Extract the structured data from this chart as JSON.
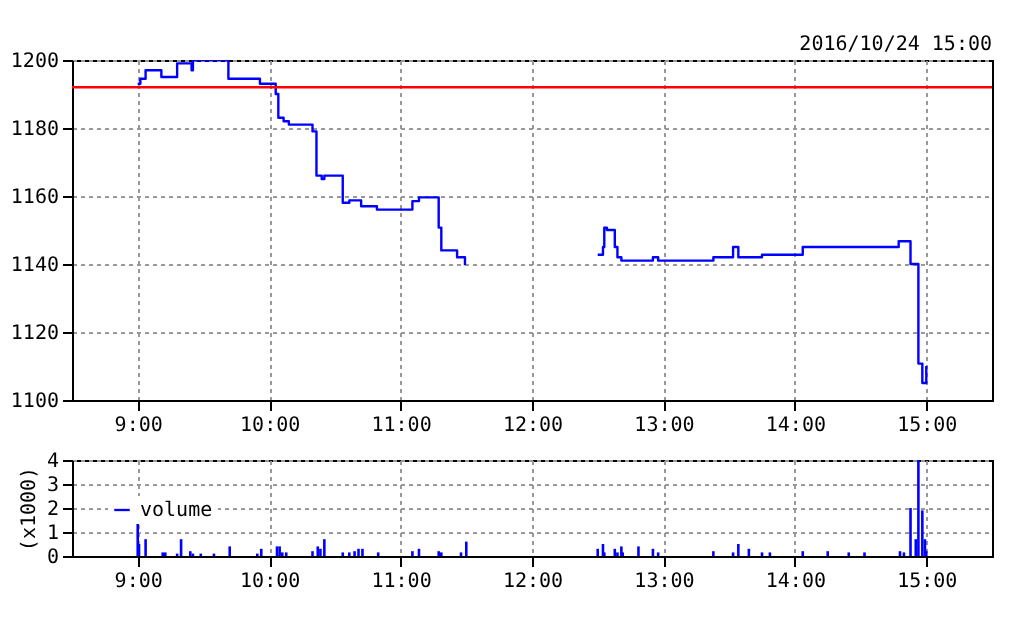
{
  "chart_data": [
    {
      "type": "step",
      "color": "#0000ff",
      "annotations": [
        "2016/10/24 15:00"
      ],
      "x": [
        9.0,
        9.02,
        9.06,
        9.18,
        9.3,
        9.41,
        9.42,
        9.69,
        9.93,
        10.05,
        10.07,
        10.11,
        10.15,
        10.33,
        10.36,
        10.4,
        10.42,
        10.56,
        10.61,
        10.7,
        10.82,
        11.09,
        11.14,
        11.29,
        11.31,
        11.43,
        11.49,
        12.0,
        12.5,
        12.54,
        12.55,
        12.57,
        12.63,
        12.65,
        12.68,
        12.92,
        12.96,
        13.38,
        13.53,
        13.57,
        13.75,
        14.06,
        14.79,
        14.88,
        14.94,
        14.97,
        15.0
      ],
      "values": [
        1193,
        1194.5,
        1197,
        1195,
        1199,
        1197,
        1200,
        1194.5,
        1193,
        1190,
        1183,
        1182,
        1181,
        1179,
        1166,
        1165,
        1166,
        1158,
        1158.7,
        1157,
        1156,
        1158.5,
        1159.6,
        1150.7,
        1144,
        1142,
        1139.6,
        null,
        1142.7,
        1145,
        1150.7,
        1150,
        1145,
        1142,
        1141,
        1142,
        1141,
        1142,
        1145,
        1142,
        1142.7,
        1145,
        1146.7,
        1140,
        1110.7,
        1105,
        1110
      ],
      "xlim": [
        8.5,
        15.5
      ],
      "xticks": [
        {
          "value": 9,
          "label": "9:00"
        },
        {
          "value": 10,
          "label": "10:00"
        },
        {
          "value": 11,
          "label": "11:00"
        },
        {
          "value": 12,
          "label": "12:00"
        },
        {
          "value": 13,
          "label": "13:00"
        },
        {
          "value": 14,
          "label": "14:00"
        },
        {
          "value": 15,
          "label": "15:00"
        }
      ],
      "ylim": [
        1100,
        1200
      ],
      "yticks": [
        1100,
        1120,
        1140,
        1160,
        1180,
        1200
      ],
      "grid": true,
      "ref_lines": [
        {
          "axis": "y",
          "value": 1192,
          "color": "#ff0000"
        }
      ]
    },
    {
      "type": "bar",
      "ylabel": "(x1000)",
      "legend": "top left",
      "series": [
        {
          "name": "volume",
          "color": "#0000ff",
          "x": [
            9.0,
            9.01,
            9.06,
            9.19,
            9.21,
            9.3,
            9.33,
            9.4,
            9.42,
            9.48,
            9.58,
            9.7,
            9.91,
            9.94,
            10.06,
            10.08,
            10.1,
            10.13,
            10.33,
            10.37,
            10.39,
            10.42,
            10.56,
            10.61,
            10.65,
            10.68,
            10.71,
            10.83,
            11.09,
            11.14,
            11.29,
            11.31,
            11.46,
            11.5,
            12.5,
            12.54,
            12.55,
            12.63,
            12.65,
            12.68,
            12.69,
            12.81,
            12.92,
            12.96,
            13.38,
            13.53,
            13.57,
            13.65,
            13.75,
            13.81,
            14.06,
            14.25,
            14.41,
            14.53,
            14.8,
            14.83,
            14.88,
            14.92,
            14.94,
            14.97,
            14.99,
            15.0
          ],
          "values": [
            1.5,
            0.5,
            0.7,
            0.15,
            0.15,
            0.1,
            0.7,
            0.2,
            0.1,
            0.1,
            0.1,
            0.4,
            0.1,
            0.3,
            0.4,
            0.4,
            0.15,
            0.15,
            0.2,
            0.4,
            0.3,
            0.7,
            0.15,
            0.15,
            0.2,
            0.3,
            0.3,
            0.15,
            0.2,
            0.3,
            0.2,
            0.15,
            0.15,
            0.6,
            0.3,
            0.5,
            0.15,
            0.3,
            0.15,
            0.4,
            0.15,
            0.4,
            0.3,
            0.15,
            0.2,
            0.15,
            0.5,
            0.3,
            0.15,
            0.15,
            0.2,
            0.2,
            0.15,
            0.15,
            0.2,
            0.15,
            2.0,
            0.7,
            4.0,
            1.9,
            0.7,
            0.2
          ]
        }
      ],
      "xlim": [
        8.5,
        15.5
      ],
      "xticks": [
        {
          "value": 9,
          "label": "9:00"
        },
        {
          "value": 10,
          "label": "10:00"
        },
        {
          "value": 11,
          "label": "11:00"
        },
        {
          "value": 12,
          "label": "12:00"
        },
        {
          "value": 13,
          "label": "13:00"
        },
        {
          "value": 14,
          "label": "14:00"
        },
        {
          "value": 15,
          "label": "15:00"
        }
      ],
      "ylim": [
        0,
        4
      ],
      "yticks": [
        0,
        1,
        2,
        3,
        4
      ],
      "grid": true
    }
  ]
}
